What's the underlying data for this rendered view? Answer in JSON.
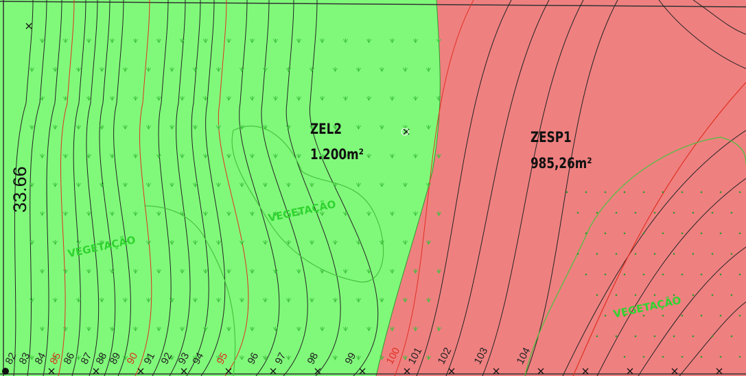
{
  "zones": [
    {
      "name": "ZEL2",
      "area": "1.200m²"
    },
    {
      "name": "ZESP1",
      "area": "985,26m²"
    }
  ],
  "vegetation_labels": [
    "VEGETAÇÃO",
    "VEGETAÇÃO",
    "VEGETAÇÃO"
  ],
  "dimension": "33.66",
  "contour_labels": [
    82,
    83,
    84,
    85,
    86,
    87,
    88,
    89,
    90,
    91,
    92,
    93,
    94,
    95,
    96,
    97,
    98,
    99,
    100,
    101,
    102,
    103,
    104
  ]
}
